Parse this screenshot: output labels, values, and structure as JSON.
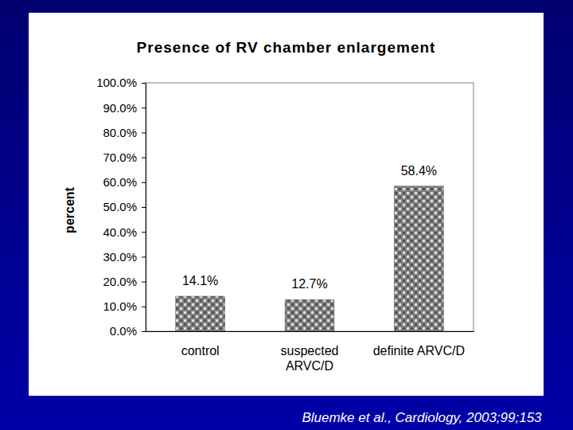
{
  "chart_data": {
    "type": "bar",
    "title": "Presence of RV chamber enlargement",
    "y_label": "percent",
    "categories": [
      "control",
      "suspected\nARVC/D",
      "definite ARVC/D"
    ],
    "values": [
      14.1,
      12.7,
      58.4
    ],
    "value_labels": [
      "14.1%",
      "12.7%",
      "58.4%"
    ],
    "data_labels": true,
    "color": "#808080",
    "ylim": [
      0,
      100
    ],
    "yticks": [
      {
        "value": 0,
        "label": "0.0%"
      },
      {
        "value": 10,
        "label": "10.0%"
      },
      {
        "value": 20,
        "label": "20.0%"
      },
      {
        "value": 30,
        "label": "30.0%"
      },
      {
        "value": 40,
        "label": "40.0%"
      },
      {
        "value": 50,
        "label": "50.0%"
      },
      {
        "value": 60,
        "label": "60.0%"
      },
      {
        "value": 70,
        "label": "70.0%"
      },
      {
        "value": 80,
        "label": "80.0%"
      },
      {
        "value": 90,
        "label": "90.0%"
      },
      {
        "value": 100,
        "label": "100.0%"
      }
    ],
    "grid": false,
    "source": "Bluemke et al., Cardiology, 2003;99;153"
  }
}
